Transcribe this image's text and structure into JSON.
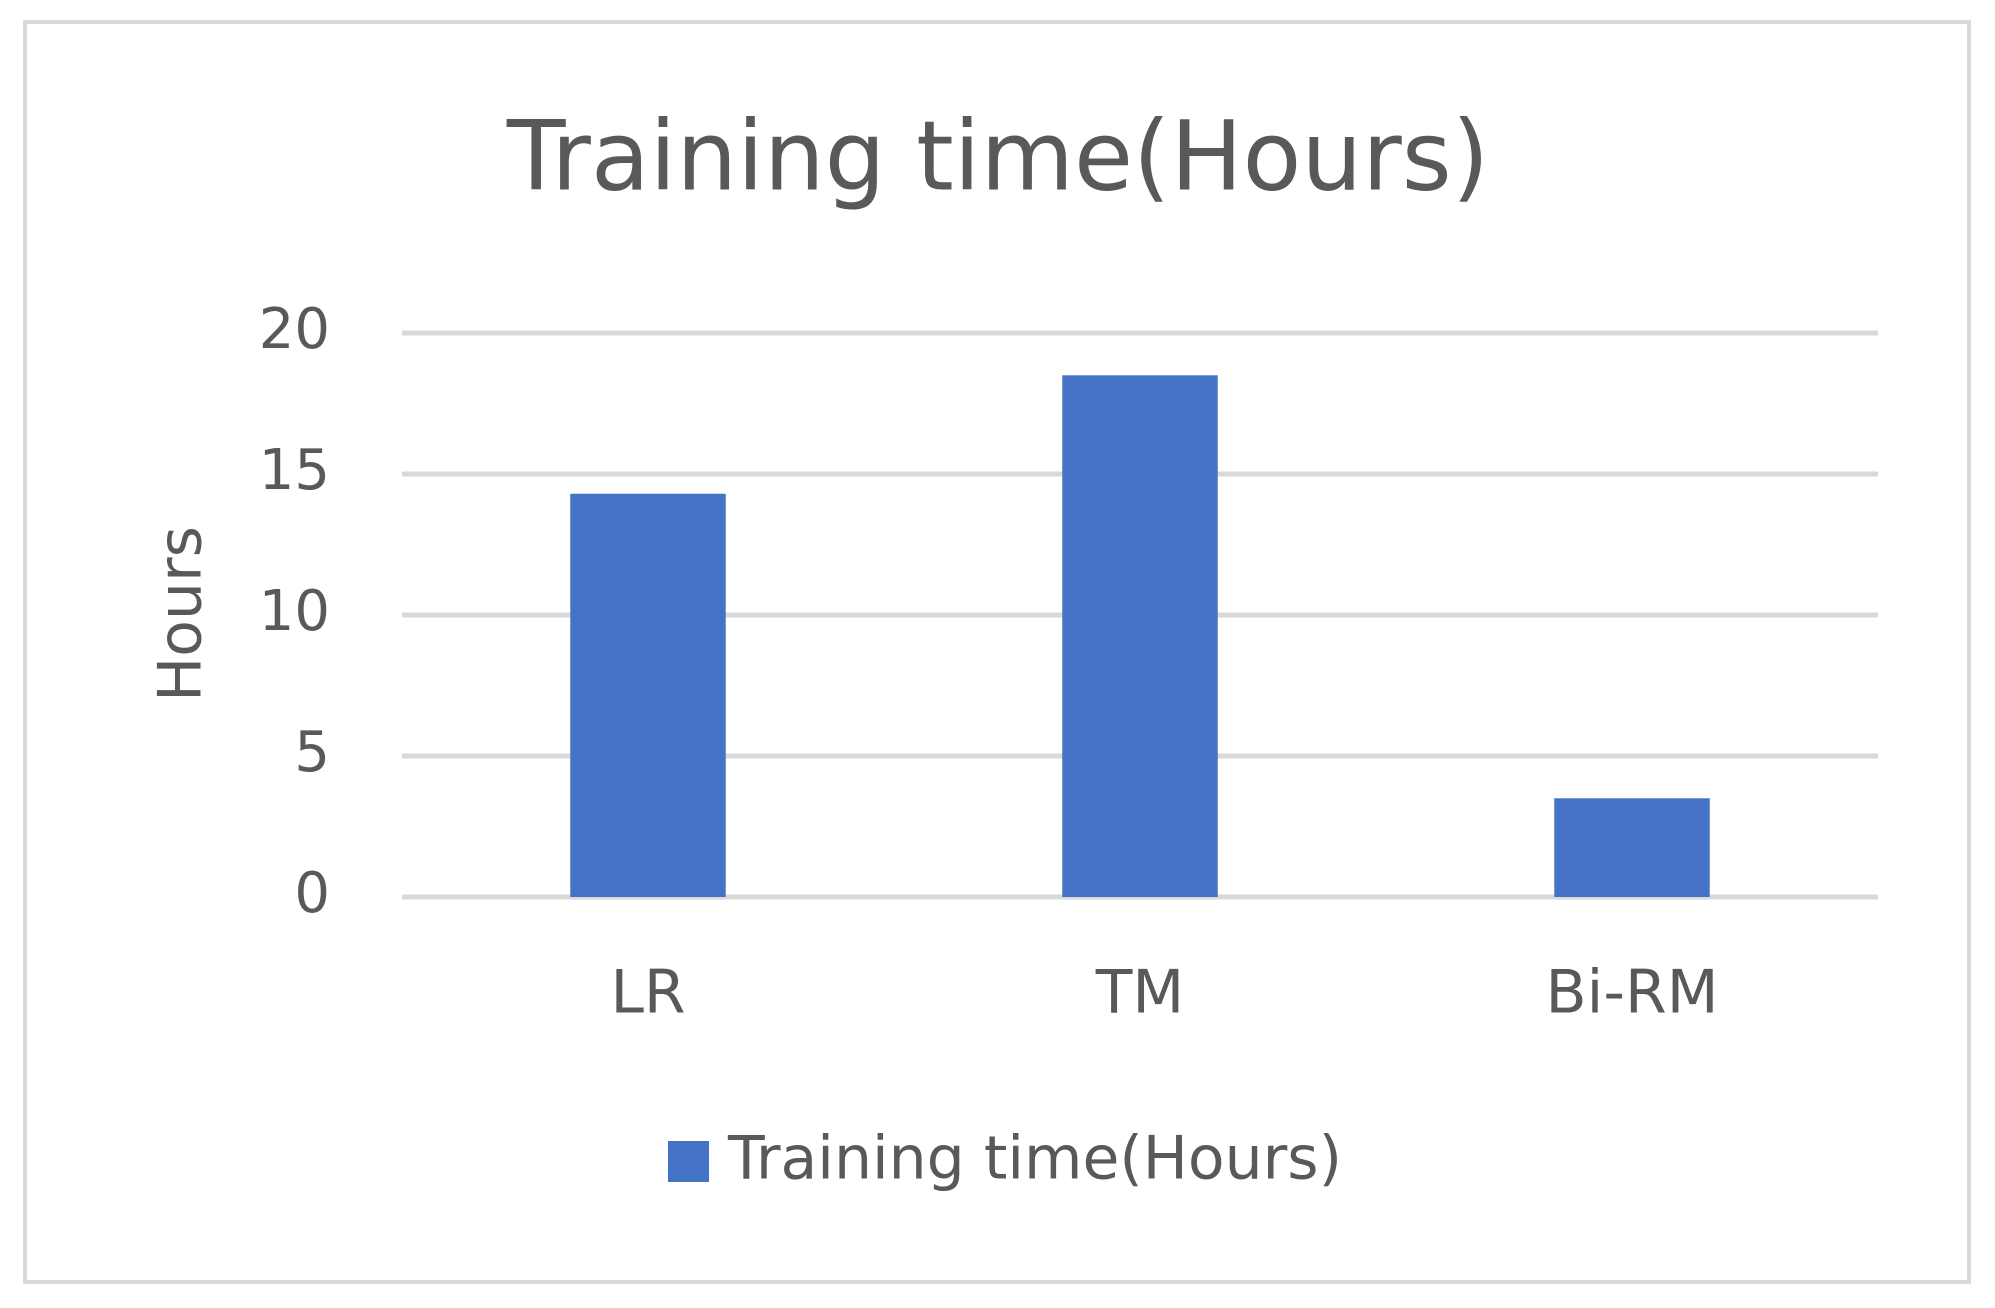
{
  "chart_data": {
    "type": "bar",
    "title": "Training time(Hours)",
    "y_label": "Hours",
    "categories": [
      "LR",
      "TM",
      "Bi-RM"
    ],
    "series": [
      {
        "name": "Training time(Hours)",
        "color": "#4472c4",
        "values": [
          14.3,
          18.5,
          3.5
        ]
      }
    ],
    "ylim": [
      0,
      20
    ],
    "yticks": [
      0,
      5,
      10,
      15,
      20
    ],
    "grid": true,
    "legend": "bottom"
  }
}
